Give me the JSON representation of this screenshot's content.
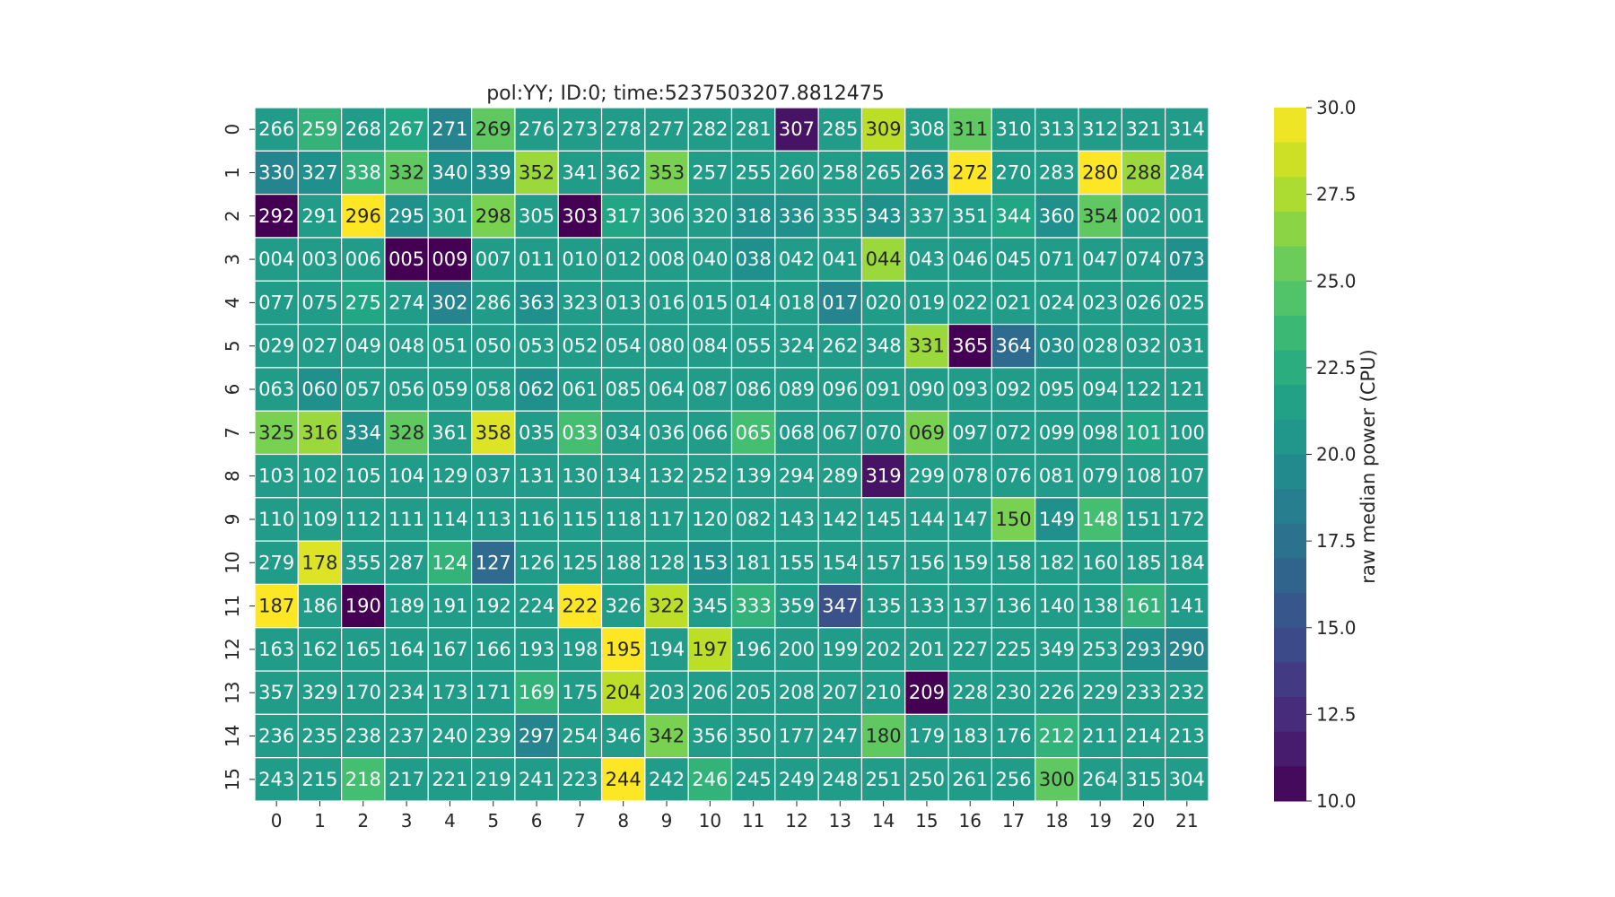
{
  "chart_data": {
    "type": "heatmap",
    "title": "pol:YY; ID:0; time:5237503207.8812475",
    "x_ticks": [
      "0",
      "1",
      "2",
      "3",
      "4",
      "5",
      "6",
      "7",
      "8",
      "9",
      "10",
      "11",
      "12",
      "13",
      "14",
      "15",
      "16",
      "17",
      "18",
      "19",
      "20",
      "21"
    ],
    "y_ticks": [
      "0",
      "1",
      "2",
      "3",
      "4",
      "5",
      "6",
      "7",
      "8",
      "9",
      "10",
      "11",
      "12",
      "13",
      "14",
      "15"
    ],
    "colorbar": {
      "label": "raw median power (CPU)",
      "min": 10.0,
      "max": 30.0,
      "ticks": [
        "10.0",
        "12.5",
        "15.0",
        "17.5",
        "20.0",
        "22.5",
        "25.0",
        "27.5",
        "30.0"
      ],
      "colormap": "viridis"
    },
    "annotations": [
      [
        "266",
        "259",
        "268",
        "267",
        "271",
        "269",
        "276",
        "273",
        "278",
        "277",
        "282",
        "281",
        "307",
        "285",
        "309",
        "308",
        "311",
        "310",
        "313",
        "312",
        "321",
        "314"
      ],
      [
        "330",
        "327",
        "338",
        "332",
        "340",
        "339",
        "352",
        "341",
        "362",
        "353",
        "257",
        "255",
        "260",
        "258",
        "265",
        "263",
        "272",
        "270",
        "283",
        "280",
        "288",
        "284"
      ],
      [
        "292",
        "291",
        "296",
        "295",
        "301",
        "298",
        "305",
        "303",
        "317",
        "306",
        "320",
        "318",
        "336",
        "335",
        "343",
        "337",
        "351",
        "344",
        "360",
        "354",
        "002",
        "001"
      ],
      [
        "004",
        "003",
        "006",
        "005",
        "009",
        "007",
        "011",
        "010",
        "012",
        "008",
        "040",
        "038",
        "042",
        "041",
        "044",
        "043",
        "046",
        "045",
        "071",
        "047",
        "074",
        "073"
      ],
      [
        "077",
        "075",
        "275",
        "274",
        "302",
        "286",
        "363",
        "323",
        "013",
        "016",
        "015",
        "014",
        "018",
        "017",
        "020",
        "019",
        "022",
        "021",
        "024",
        "023",
        "026",
        "025"
      ],
      [
        "029",
        "027",
        "049",
        "048",
        "051",
        "050",
        "053",
        "052",
        "054",
        "080",
        "084",
        "055",
        "324",
        "262",
        "348",
        "331",
        "365",
        "364",
        "030",
        "028",
        "032",
        "031"
      ],
      [
        "063",
        "060",
        "057",
        "056",
        "059",
        "058",
        "062",
        "061",
        "085",
        "064",
        "087",
        "086",
        "089",
        "096",
        "091",
        "090",
        "093",
        "092",
        "095",
        "094",
        "122",
        "121"
      ],
      [
        "325",
        "316",
        "334",
        "328",
        "361",
        "358",
        "035",
        "033",
        "034",
        "036",
        "066",
        "065",
        "068",
        "067",
        "070",
        "069",
        "097",
        "072",
        "099",
        "098",
        "101",
        "100"
      ],
      [
        "103",
        "102",
        "105",
        "104",
        "129",
        "037",
        "131",
        "130",
        "134",
        "132",
        "252",
        "139",
        "294",
        "289",
        "319",
        "299",
        "078",
        "076",
        "081",
        "079",
        "108",
        "107"
      ],
      [
        "110",
        "109",
        "112",
        "111",
        "114",
        "113",
        "116",
        "115",
        "118",
        "117",
        "120",
        "082",
        "143",
        "142",
        "145",
        "144",
        "147",
        "150",
        "149",
        "148",
        "151",
        "172"
      ],
      [
        "279",
        "178",
        "355",
        "287",
        "124",
        "127",
        "126",
        "125",
        "188",
        "128",
        "153",
        "181",
        "155",
        "154",
        "157",
        "156",
        "159",
        "158",
        "182",
        "160",
        "185",
        "184"
      ],
      [
        "187",
        "186",
        "190",
        "189",
        "191",
        "192",
        "224",
        "222",
        "326",
        "322",
        "345",
        "333",
        "359",
        "347",
        "135",
        "133",
        "137",
        "136",
        "140",
        "138",
        "161",
        "141"
      ],
      [
        "163",
        "162",
        "165",
        "164",
        "167",
        "166",
        "193",
        "198",
        "195",
        "194",
        "197",
        "196",
        "200",
        "199",
        "202",
        "201",
        "227",
        "225",
        "349",
        "253",
        "293",
        "290"
      ],
      [
        "357",
        "329",
        "170",
        "234",
        "173",
        "171",
        "169",
        "175",
        "204",
        "203",
        "206",
        "205",
        "208",
        "207",
        "210",
        "209",
        "228",
        "230",
        "226",
        "229",
        "233",
        "232"
      ],
      [
        "236",
        "235",
        "238",
        "237",
        "240",
        "239",
        "297",
        "254",
        "346",
        "342",
        "356",
        "350",
        "177",
        "247",
        "180",
        "179",
        "183",
        "176",
        "212",
        "211",
        "214",
        "213"
      ],
      [
        "243",
        "215",
        "218",
        "217",
        "221",
        "219",
        "241",
        "223",
        "244",
        "242",
        "246",
        "245",
        "249",
        "248",
        "251",
        "250",
        "261",
        "256",
        "300",
        "264",
        "315",
        "304"
      ]
    ],
    "values": [
      [
        21,
        23,
        21,
        22,
        19,
        25,
        21,
        21,
        21,
        21,
        21,
        21,
        11,
        21,
        28,
        21,
        25,
        21,
        21,
        21,
        21,
        21
      ],
      [
        19,
        20,
        23,
        25,
        20,
        20,
        27,
        21,
        21,
        26,
        21,
        21,
        21,
        21,
        21,
        20,
        30,
        21,
        21,
        30,
        27,
        21
      ],
      [
        10,
        21,
        30,
        20,
        21,
        26,
        21,
        10,
        22,
        21,
        21,
        20,
        20,
        21,
        20,
        21,
        21,
        22,
        20,
        25,
        21,
        21
      ],
      [
        21,
        21,
        21,
        10,
        10,
        21,
        21,
        21,
        21,
        21,
        21,
        20,
        21,
        21,
        27,
        21,
        21,
        21,
        21,
        21,
        21,
        20
      ],
      [
        21,
        21,
        22,
        21,
        19,
        21,
        20,
        21,
        21,
        21,
        21,
        21,
        21,
        19,
        21,
        21,
        21,
        21,
        21,
        21,
        21,
        21
      ],
      [
        21,
        21,
        21,
        21,
        21,
        21,
        21,
        21,
        21,
        21,
        21,
        21,
        21,
        21,
        21,
        27,
        10,
        17,
        20,
        21,
        21,
        21
      ],
      [
        21,
        20,
        21,
        21,
        21,
        21,
        20,
        21,
        21,
        21,
        21,
        21,
        21,
        21,
        21,
        21,
        21,
        21,
        21,
        21,
        21,
        21
      ],
      [
        26,
        27,
        20,
        25,
        21,
        29,
        21,
        24,
        21,
        21,
        21,
        24,
        21,
        21,
        21,
        26,
        21,
        21,
        21,
        21,
        22,
        21
      ],
      [
        21,
        21,
        21,
        21,
        21,
        21,
        21,
        21,
        21,
        21,
        21,
        21,
        21,
        21,
        11,
        21,
        21,
        21,
        21,
        21,
        21,
        21
      ],
      [
        21,
        21,
        21,
        21,
        21,
        21,
        21,
        21,
        21,
        21,
        21,
        21,
        21,
        21,
        21,
        21,
        21,
        26,
        20,
        24,
        21,
        21
      ],
      [
        21,
        29,
        21,
        21,
        23,
        17,
        21,
        21,
        21,
        21,
        20,
        21,
        21,
        21,
        21,
        21,
        21,
        21,
        21,
        21,
        21,
        21
      ],
      [
        30,
        21,
        10,
        21,
        21,
        21,
        21,
        30,
        21,
        28,
        21,
        23,
        21,
        15,
        21,
        21,
        21,
        21,
        21,
        21,
        23,
        21
      ],
      [
        21,
        21,
        21,
        21,
        21,
        21,
        21,
        21,
        30,
        21,
        28,
        21,
        21,
        21,
        21,
        21,
        21,
        21,
        21,
        21,
        20,
        19
      ],
      [
        21,
        21,
        21,
        21,
        21,
        21,
        23,
        21,
        28,
        21,
        21,
        21,
        21,
        21,
        21,
        10,
        21,
        21,
        21,
        21,
        21,
        21
      ],
      [
        21,
        21,
        21,
        21,
        21,
        21,
        19,
        21,
        21,
        26,
        21,
        21,
        21,
        21,
        25,
        21,
        21,
        21,
        23,
        21,
        21,
        21
      ],
      [
        21,
        21,
        24,
        21,
        21,
        21,
        21,
        21,
        30,
        21,
        23,
        21,
        21,
        21,
        21,
        21,
        21,
        21,
        25,
        21,
        21,
        21
      ]
    ]
  }
}
